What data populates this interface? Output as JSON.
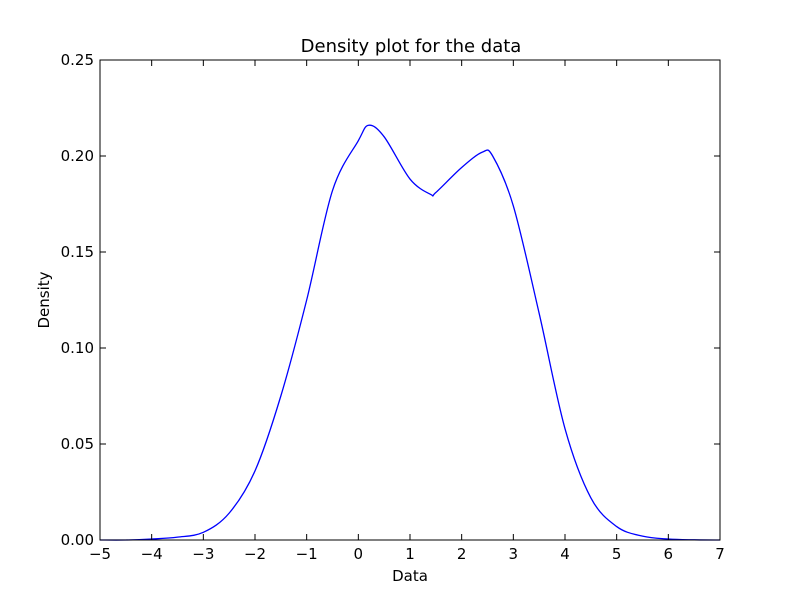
{
  "chart_data": {
    "type": "line",
    "title": "Density plot for the data",
    "xlabel": "Data",
    "ylabel": "Density",
    "xlim": [
      -5,
      7
    ],
    "ylim": [
      0,
      0.25
    ],
    "grid": false,
    "x_ticks": [
      -5,
      -4,
      -3,
      -2,
      -1,
      0,
      1,
      2,
      3,
      4,
      5,
      6,
      7
    ],
    "x_tick_labels": [
      "−5",
      "−4",
      "−3",
      "−2",
      "−1",
      "0",
      "1",
      "2",
      "3",
      "4",
      "5",
      "6",
      "7"
    ],
    "y_ticks": [
      0,
      0.05,
      0.1,
      0.15,
      0.2,
      0.25
    ],
    "y_tick_labels": [
      "0.00",
      "0.05",
      "0.10",
      "0.15",
      "0.20",
      "0.25"
    ],
    "series": [
      {
        "color": "#0000ff",
        "x": [
          -5,
          -4.5,
          -4,
          -3.5,
          -3,
          -2.5,
          -2,
          -1.5,
          -1,
          -0.5,
          0,
          0.2,
          0.5,
          1,
          1.4,
          1.5,
          2,
          2.4,
          2.6,
          3,
          3.5,
          4,
          4.5,
          5,
          5.5,
          6,
          6.5,
          7
        ],
        "y": [
          0.0,
          0.0,
          0.0005,
          0.0015,
          0.004,
          0.014,
          0.036,
          0.075,
          0.125,
          0.182,
          0.208,
          0.216,
          0.21,
          0.188,
          0.18,
          0.181,
          0.194,
          0.202,
          0.2,
          0.174,
          0.118,
          0.058,
          0.022,
          0.007,
          0.002,
          0.0005,
          0.0001,
          0.0
        ]
      }
    ]
  }
}
